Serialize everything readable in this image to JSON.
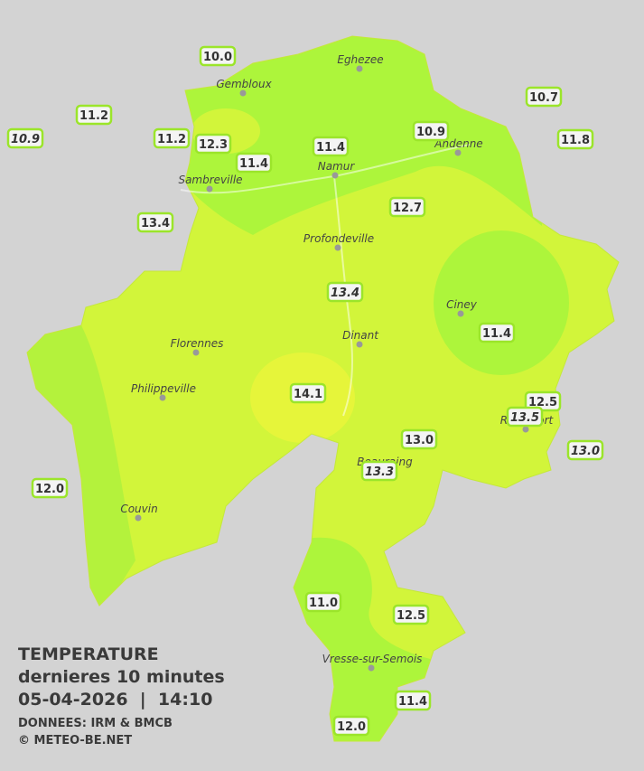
{
  "stations": [
    {
      "label": "10.0",
      "italic": false
    },
    {
      "label": "11.2",
      "italic": false
    },
    {
      "label": "10.9",
      "italic": true
    },
    {
      "label": "11.2",
      "italic": false
    },
    {
      "label": "12.3",
      "italic": false
    },
    {
      "label": "11.4",
      "italic": false
    },
    {
      "label": "11.4",
      "italic": false
    },
    {
      "label": "10.9",
      "italic": false
    },
    {
      "label": "10.7",
      "italic": false
    },
    {
      "label": "11.8",
      "italic": false
    },
    {
      "label": "13.4",
      "italic": false
    },
    {
      "label": "12.7",
      "italic": false
    },
    {
      "label": "13.4",
      "italic": true
    },
    {
      "label": "11.4",
      "italic": false
    },
    {
      "label": "14.1",
      "italic": false
    },
    {
      "label": "12.5",
      "italic": false
    },
    {
      "label": "13.5",
      "italic": true
    },
    {
      "label": "13.0",
      "italic": false
    },
    {
      "label": "13.0",
      "italic": true
    },
    {
      "label": "13.3",
      "italic": true
    },
    {
      "label": "12.0",
      "italic": false
    },
    {
      "label": "11.0",
      "italic": false
    },
    {
      "label": "12.5",
      "italic": false
    },
    {
      "label": "11.4",
      "italic": false
    },
    {
      "label": "12.0",
      "italic": false
    }
  ],
  "cities": [
    "Eghezee",
    "Gembloux",
    "Andenne",
    "Namur",
    "Sambreville",
    "Profondeville",
    "Ciney",
    "Dinant",
    "Florennes",
    "Philippeville",
    "Rochefort",
    "Beauraing",
    "Couvin",
    "Vresse-sur-Semois"
  ],
  "legend": {
    "title": "TEMPERATURE",
    "subtitle": "dernieres 10 minutes",
    "datetime": "05-04-2026  |  14:10",
    "source": "DONNEES: IRM & BMCB",
    "copyright": "© METEO-BE.NET"
  }
}
